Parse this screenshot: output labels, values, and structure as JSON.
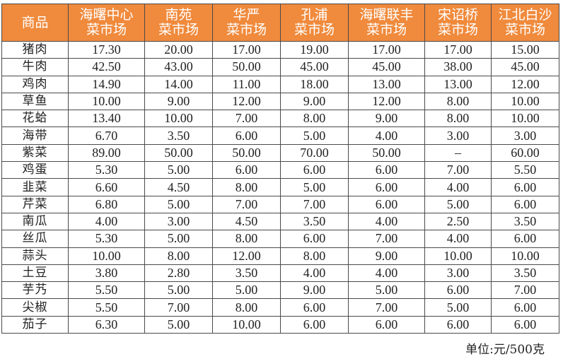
{
  "table": {
    "headers": [
      [
        "商品"
      ],
      [
        "海曙中心",
        "菜市场"
      ],
      [
        "南苑",
        "菜市场"
      ],
      [
        "华严",
        "菜市场"
      ],
      [
        "孔浦",
        "菜市场"
      ],
      [
        "海曙联丰",
        "菜市场"
      ],
      [
        "宋诏桥",
        "菜市场"
      ],
      [
        "江北白沙",
        "菜市场"
      ]
    ],
    "rows": [
      [
        "猪肉",
        "17.30",
        "20.00",
        "17.00",
        "19.00",
        "17.00",
        "17.00",
        "15.00"
      ],
      [
        "牛肉",
        "42.50",
        "43.00",
        "50.00",
        "45.00",
        "45.00",
        "38.00",
        "45.00"
      ],
      [
        "鸡肉",
        "14.90",
        "14.00",
        "11.00",
        "18.00",
        "13.00",
        "13.00",
        "12.00"
      ],
      [
        "草鱼",
        "10.00",
        "9.00",
        "12.00",
        "9.00",
        "12.00",
        "8.00",
        "10.00"
      ],
      [
        "花蛤",
        "13.40",
        "10.00",
        "7.00",
        "8.00",
        "9.00",
        "8.00",
        "10.00"
      ],
      [
        "海带",
        "6.70",
        "3.50",
        "6.00",
        "5.00",
        "4.00",
        "3.00",
        "3.00"
      ],
      [
        "紫菜",
        "89.00",
        "50.00",
        "50.00",
        "70.00",
        "50.00",
        "–",
        "60.00"
      ],
      [
        "鸡蛋",
        "5.30",
        "5.00",
        "6.00",
        "6.00",
        "6.00",
        "7.00",
        "5.50"
      ],
      [
        "韭菜",
        "6.60",
        "4.50",
        "8.00",
        "5.00",
        "6.00",
        "4.00",
        "6.00"
      ],
      [
        "芹菜",
        "6.80",
        "5.00",
        "7.00",
        "7.00",
        "6.00",
        "5.00",
        "6.00"
      ],
      [
        "南瓜",
        "4.00",
        "3.00",
        "4.50",
        "3.50",
        "4.00",
        "2.50",
        "3.50"
      ],
      [
        "丝瓜",
        "5.30",
        "5.00",
        "8.00",
        "6.00",
        "7.00",
        "4.00",
        "6.00"
      ],
      [
        "蒜头",
        "10.00",
        "8.00",
        "12.00",
        "8.00",
        "9.00",
        "10.00",
        "10.00"
      ],
      [
        "土豆",
        "3.80",
        "2.80",
        "3.50",
        "4.00",
        "4.00",
        "3.00",
        "3.50"
      ],
      [
        "芋艿",
        "5.50",
        "5.00",
        "5.00",
        "9.00",
        "5.00",
        "6.00",
        "7.00"
      ],
      [
        "尖椒",
        "5.50",
        "7.00",
        "8.00",
        "6.00",
        "7.00",
        "5.00",
        "6.00"
      ],
      [
        "茄子",
        "6.30",
        "5.00",
        "10.00",
        "6.00",
        "6.00",
        "6.00",
        "6.00"
      ]
    ]
  },
  "unit_note": "单位:元/500克",
  "colors": {
    "header_bg": "#f08a3c",
    "header_text": "#ffffff",
    "border": "#4a4a4a"
  }
}
